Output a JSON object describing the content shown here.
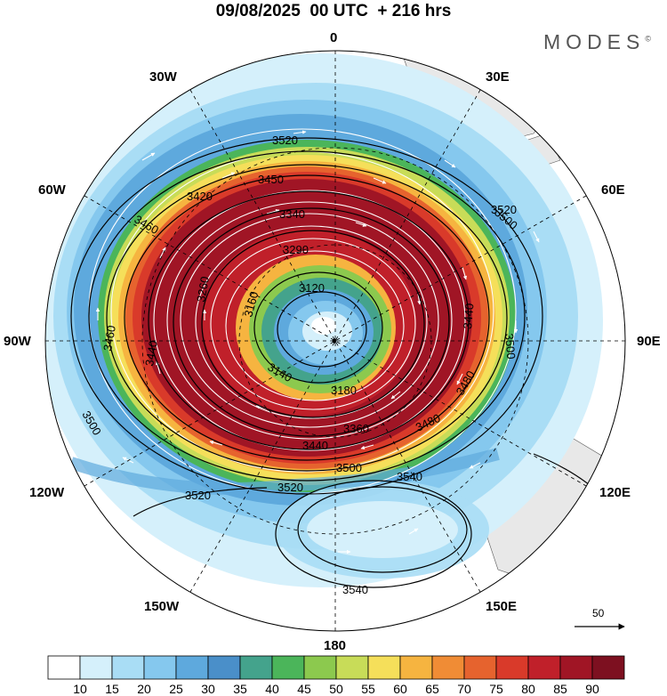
{
  "title": "09/08/2025  00 UTC  + 216 hrs",
  "brand": "MODES",
  "brand_mark": "©",
  "longitude_labels": {
    "lon_0": "0",
    "lon_30e": "30E",
    "lon_60e": "60E",
    "lon_90e": "90E",
    "lon_120e": "120E",
    "lon_150e": "150E",
    "lon_180": "180",
    "lon_150w": "150W",
    "lon_120w": "120W",
    "lon_90w": "90W",
    "lon_60w": "60W",
    "lon_30w": "30W"
  },
  "contour_labels": [
    "3520",
    "3500",
    "3460",
    "3420",
    "3450",
    "3340",
    "3290",
    "3260",
    "3160",
    "3120",
    "3140",
    "3180",
    "3360",
    "3440",
    "3480",
    "3500",
    "3520",
    "3540",
    "3540",
    "3520",
    "3500",
    "3460",
    "3440",
    "3500",
    "3520",
    "3440",
    "3480"
  ],
  "vector_reference": "50",
  "colorbar": {
    "ticks": [
      "10",
      "15",
      "20",
      "25",
      "30",
      "35",
      "40",
      "45",
      "50",
      "55",
      "60",
      "65",
      "70",
      "75",
      "80",
      "85",
      "90"
    ],
    "colors": [
      "#ffffff",
      "#d5f0fb",
      "#a9ddf5",
      "#85c8ee",
      "#5ea9dd",
      "#4a8fc9",
      "#44a38c",
      "#4bb55a",
      "#8cc94e",
      "#c8dc58",
      "#f5df5a",
      "#f6b440",
      "#f08c35",
      "#e6632e",
      "#d93a2a",
      "#c0202a",
      "#a01525",
      "#7d1020"
    ]
  },
  "colors": {
    "land": "#e8e8e8",
    "background": "#ffffff"
  }
}
